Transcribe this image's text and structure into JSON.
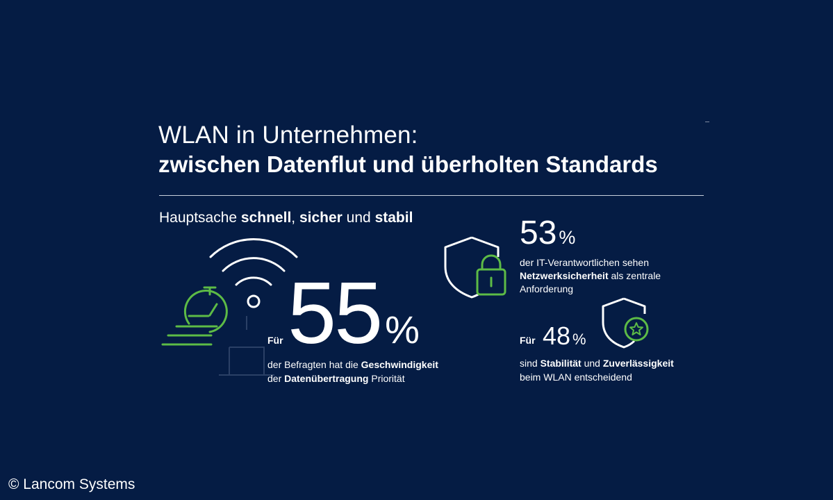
{
  "title": {
    "line1": "WLAN in Unternehmen:",
    "line2": "zwischen Datenflut und überholten Standards"
  },
  "subtitle": {
    "prefix": "Hauptsache ",
    "w1": "schnell",
    "sep1": ", ",
    "w2": "sicher",
    "sep2": " und ",
    "w3": "stabil"
  },
  "stat_speed": {
    "fuer": "Für",
    "value": "55",
    "unit": "%",
    "line1_prefix": "der Befragten hat die ",
    "line1_bold": "Geschwindigkeit",
    "line2_prefix": "der ",
    "line2_bold": "Datenübertragung",
    "line2_suffix": " Priorität"
  },
  "stat_security": {
    "value": "53",
    "unit": "%",
    "line1": "der IT-Verantwortlichen sehen",
    "line2_bold": "Netzwerksicherheit",
    "line2_suffix": " als zentrale",
    "line3": "Anforderung"
  },
  "stat_stability": {
    "fuer": "Für",
    "value": "48",
    "unit": "%",
    "line1_prefix": "sind ",
    "line1_bold1": "Stabilität",
    "line1_mid": " und ",
    "line1_bold2": "Zuverlässigkeit",
    "line2": "beim WLAN entscheidend"
  },
  "credit": "© Lancom Systems",
  "colors": {
    "background": "#051c44",
    "accent_green": "#5dbb46",
    "text": "#ffffff"
  },
  "icons": [
    "wifi-icon",
    "stopwatch-speed-icon",
    "shield-lock-icon",
    "shield-star-icon"
  ]
}
